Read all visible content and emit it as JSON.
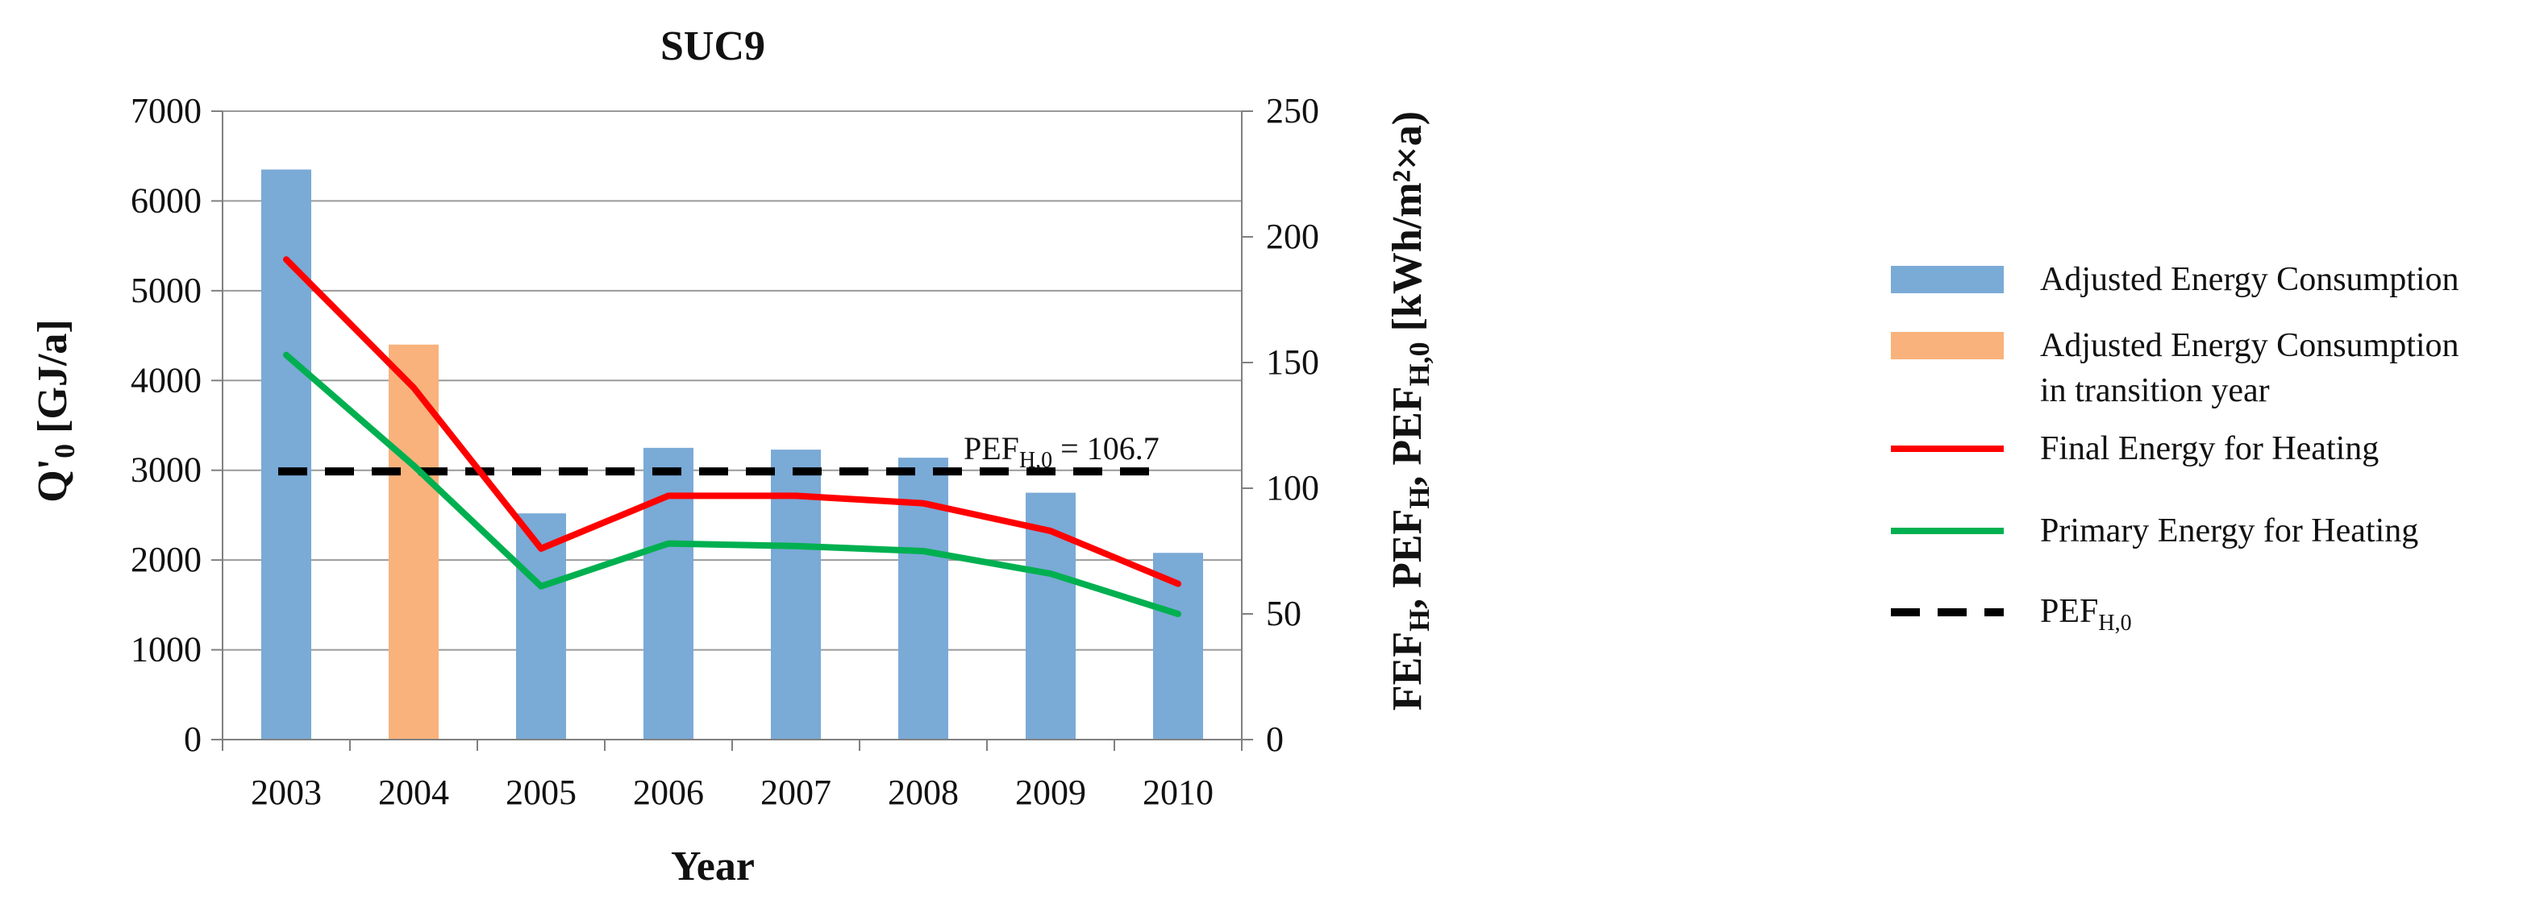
{
  "chart_data": {
    "type": "bar",
    "title": "SUC9",
    "xlabel": "Year",
    "ylabel_left": "Q'0 [GJ/a]",
    "ylabel_right": "FEFH, PEFH, PEFH,0 [kWh/m²×a)",
    "categories": [
      "2003",
      "2004",
      "2005",
      "2006",
      "2007",
      "2008",
      "2009",
      "2010"
    ],
    "ylim_left": [
      0,
      7000
    ],
    "yticks_left": [
      0,
      1000,
      2000,
      3000,
      4000,
      5000,
      6000,
      7000
    ],
    "ylim_right": [
      0,
      250
    ],
    "yticks_right": [
      0,
      50,
      100,
      150,
      200,
      250
    ],
    "grid": true,
    "bars": {
      "name": "Adjusted Energy Consumption",
      "axis": "left",
      "values": [
        6350,
        4400,
        2520,
        3250,
        3230,
        3140,
        2750,
        2080
      ],
      "colors": [
        "#7aaad6",
        "#f9b27c",
        "#7aaad6",
        "#7aaad6",
        "#7aaad6",
        "#7aaad6",
        "#7aaad6",
        "#7aaad6"
      ]
    },
    "series": [
      {
        "name": "Final Energy for Heating",
        "axis": "right",
        "color": "#ff0000",
        "values": [
          191,
          140,
          76,
          97,
          97,
          94,
          83,
          62
        ]
      },
      {
        "name": "Primary Energy for Heating",
        "axis": "right",
        "color": "#00b050",
        "values": [
          153,
          109,
          61,
          78,
          77,
          75,
          66,
          50
        ]
      }
    ],
    "reference_line": {
      "name": "PEFH,0",
      "axis": "right",
      "value": 106.7,
      "label": "PEFH,0 = 106.7",
      "color": "#000000"
    },
    "legend": {
      "placement": "right",
      "entries": [
        {
          "label": "Adjusted Energy Consumption",
          "kind": "bar",
          "color": "#7aaad6"
        },
        {
          "label": "Adjusted Energy Consumption",
          "label_line2": "in transition year",
          "kind": "bar",
          "color": "#f9b27c"
        },
        {
          "label": "Final Energy for Heating",
          "kind": "line",
          "color": "#ff0000"
        },
        {
          "label": "Primary Energy for Heating",
          "kind": "line",
          "color": "#00b050"
        },
        {
          "label": "PEFH,0",
          "kind": "dashed",
          "color": "#000000"
        }
      ]
    }
  }
}
